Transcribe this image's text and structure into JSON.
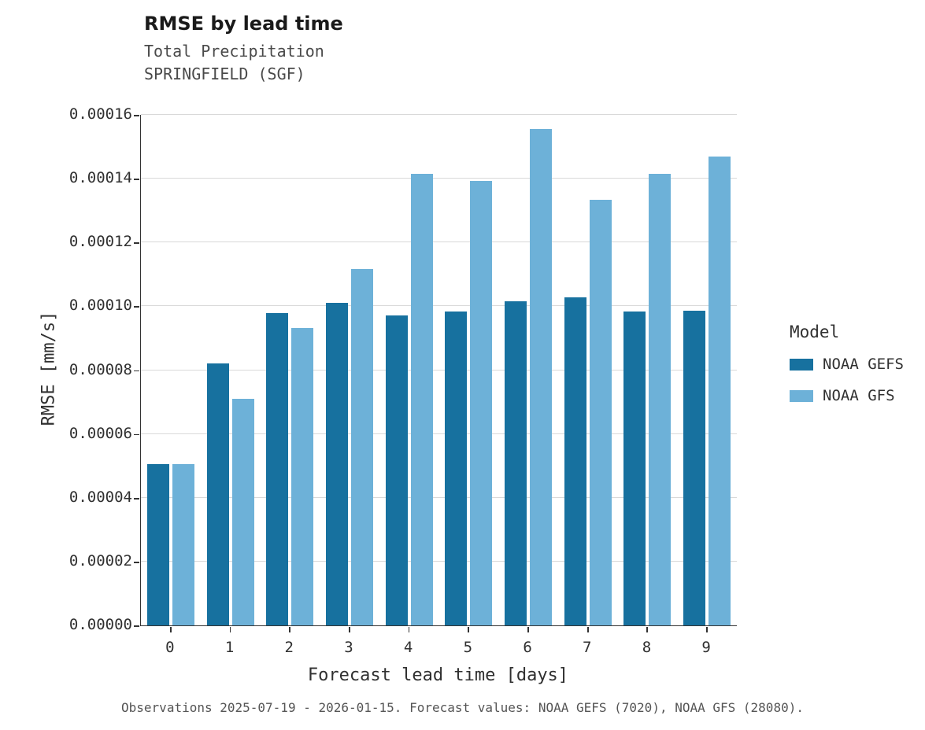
{
  "title": "RMSE by lead time",
  "subtitle1": "Total Precipitation",
  "subtitle2": "SPRINGFIELD (SGF)",
  "footer": "Observations 2025-07-19 - 2026-01-15. Forecast values: NOAA GEFS (7020), NOAA GFS (28080).",
  "legend": {
    "title": "Model",
    "entries": [
      {
        "label": "NOAA GEFS",
        "color": "#17719f"
      },
      {
        "label": "NOAA GFS",
        "color": "#6db1d8"
      }
    ]
  },
  "chart_data": {
    "type": "bar",
    "title": "RMSE by lead time",
    "subtitle": "Total Precipitation / SPRINGFIELD (SGF)",
    "xlabel": "Forecast lead time [days]",
    "ylabel": "RMSE [mm/s]",
    "categories": [
      "0",
      "1",
      "2",
      "3",
      "4",
      "5",
      "6",
      "7",
      "8",
      "9"
    ],
    "series": [
      {
        "name": "NOAA GEFS",
        "color": "#17719f",
        "values": [
          5.05e-05,
          8.2e-05,
          9.78e-05,
          0.000101,
          9.72e-05,
          9.84e-05,
          0.0001015,
          0.0001027,
          9.84e-05,
          9.87e-05
        ]
      },
      {
        "name": "NOAA GFS",
        "color": "#6db1d8",
        "values": [
          5.06e-05,
          7.1e-05,
          9.32e-05,
          0.0001118,
          0.0001416,
          0.0001392,
          0.0001555,
          0.0001333,
          0.0001414,
          0.0001469
        ]
      }
    ],
    "ylim": [
      0,
      0.00016
    ],
    "yticks": [
      0.0,
      2e-05,
      4e-05,
      6e-05,
      8e-05,
      0.0001,
      0.00012,
      0.00014,
      0.00016
    ],
    "ytick_decimals": 5,
    "grid": true,
    "legend_position": "right"
  }
}
